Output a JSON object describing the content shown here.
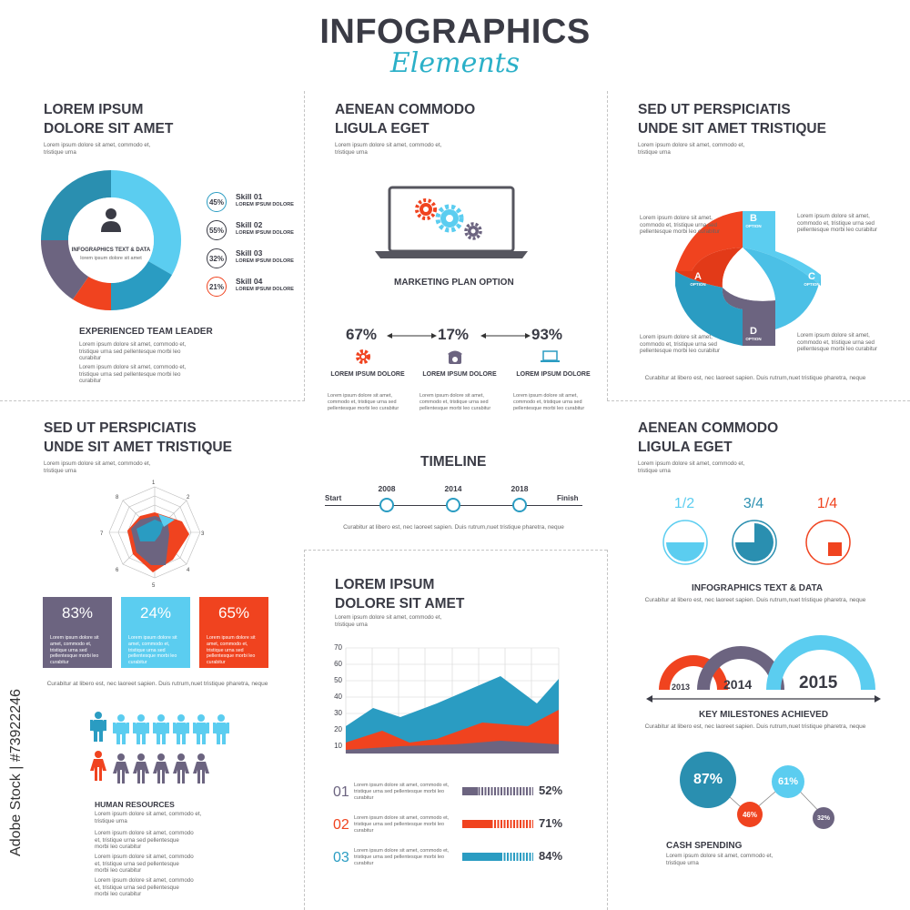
{
  "header": {
    "title": "INFOGRAPHICS",
    "subtitle": "Elements"
  },
  "lorem_short": "Lorem ipsum dolore sit amet, commodo et, tristique urna",
  "lorem_med": "Lorem ipsum dolore sit amet, commodo et, tristique urna sed pellentesque morbi leo curabitur",
  "curabitur": "Curabitur at libero est, nec laoreet sapien. Duis rutrum,nuet tristique pharetra,",
  "curabitur2": "Curabitur at libero est, nec laoreet sapien. Duis rutrum,nuet tristique pharetra, neque",
  "curabitur_short": "Curabitur at libero est, nec laoreet sapien. Duis rutrum,nuet tristique",
  "panel1": {
    "heading1": "LOREM IPSUM",
    "heading2": "DOLORE SIT AMET",
    "center_label": "INFOGRAPHICS TEXT & DATA",
    "center_sub": "lorem ipsum dolore sit amet",
    "skills": [
      {
        "pct": "45%",
        "name": "Skill 01",
        "sub": "LOREM IPSUM DOLORE",
        "color": "#2a9cc2"
      },
      {
        "pct": "55%",
        "name": "Skill 02",
        "sub": "LOREM IPSUM DOLORE",
        "color": "#3a3b45"
      },
      {
        "pct": "32%",
        "name": "Skill 03",
        "sub": "LOREM IPSUM DOLORE",
        "color": "#3a3b45"
      },
      {
        "pct": "21%",
        "name": "Skill 04",
        "sub": "LOREM IPSUM DOLORE",
        "color": "#f0431f"
      }
    ],
    "team_label": "EXPERIENCED TEAM LEADER"
  },
  "panel2": {
    "heading1": "AENEAN COMMODO",
    "heading2": "LIGULA EGET",
    "marketing": "MARKETING PLAN OPTION",
    "stats": [
      {
        "value": "67%",
        "label": "LOREM IPSUM DOLORE",
        "icon": "gear-icon"
      },
      {
        "value": "17%",
        "label": "LOREM IPSUM DOLORE",
        "icon": "phone-icon"
      },
      {
        "value": "93%",
        "label": "LOREM IPSUM DOLORE",
        "icon": "laptop-icon"
      }
    ]
  },
  "panel3": {
    "heading1": "SED UT PERSPICIATIS",
    "heading2": "UNDE SIT AMET TRISTIQUE",
    "options": [
      {
        "letter": "A",
        "word": "OPTION"
      },
      {
        "letter": "B",
        "word": "OPTION"
      },
      {
        "letter": "C",
        "word": "OPTION"
      },
      {
        "letter": "D",
        "word": "OPTION"
      }
    ]
  },
  "panel4": {
    "heading1": "SED UT PERSPICIATIS",
    "heading2": "UNDE SIT AMET TRISTIQUE",
    "radar_labels": [
      "1",
      "2",
      "3",
      "4",
      "5",
      "6",
      "7",
      "8"
    ],
    "boxes": [
      {
        "pct": "83%",
        "color": "#6c6480"
      },
      {
        "pct": "24%",
        "color": "#5bcdf0"
      },
      {
        "pct": "65%",
        "color": "#f0431f"
      }
    ],
    "hr_label": "HUMAN RESOURCES"
  },
  "timeline": {
    "title": "TIMELINE",
    "start": "Start",
    "finish": "Finish",
    "years": [
      "2008",
      "2014",
      "2018"
    ]
  },
  "panel5": {
    "heading1": "LOREM IPSUM",
    "heading2": "DOLORE SIT AMET",
    "y_ticks": [
      "70",
      "60",
      "50",
      "40",
      "30",
      "20",
      "10"
    ],
    "rows": [
      {
        "num": "01",
        "pct": "52%",
        "color": "#6c6480",
        "level": 0.52
      },
      {
        "num": "02",
        "pct": "71%",
        "color": "#f0431f",
        "level": 0.71
      },
      {
        "num": "03",
        "pct": "84%",
        "color": "#2a9cc2",
        "level": 0.84
      }
    ]
  },
  "panel6": {
    "heading1": "AENEAN COMMODO",
    "heading2": "LIGULA EGET",
    "fractions": [
      {
        "label": "1/2",
        "color": "#5bcdf0",
        "value": 0.5
      },
      {
        "label": "3/4",
        "color": "#2a8fb0",
        "value": 0.75
      },
      {
        "label": "1/4",
        "color": "#f0431f",
        "value": 0.25
      }
    ],
    "data_label": "INFOGRAPHICS TEXT & DATA",
    "years": [
      "2013",
      "2014",
      "2015"
    ],
    "milestones": "KEY MILESTONES ACHIEVED",
    "bubbles": [
      "87%",
      "61%",
      "46%",
      "32%"
    ],
    "cash": "CASH SPENDING"
  },
  "credit": "Adobe Stock | #73922246"
}
